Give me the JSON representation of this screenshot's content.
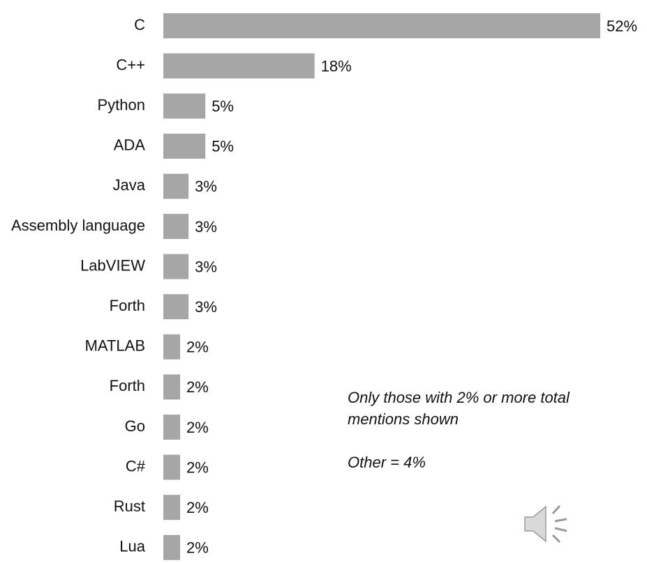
{
  "chart_data": {
    "type": "bar",
    "orientation": "horizontal",
    "categories": [
      "C",
      "C++",
      "Python",
      "ADA",
      "Java",
      "Assembly language",
      "LabVIEW",
      "Forth",
      "MATLAB",
      "Forth",
      "Go",
      "C#",
      "Rust",
      "Lua"
    ],
    "values": [
      52,
      18,
      5,
      5,
      3,
      3,
      3,
      3,
      2,
      2,
      2,
      2,
      2,
      2
    ],
    "value_labels": [
      "52%",
      "18%",
      "5%",
      "5%",
      "3%",
      "3%",
      "3%",
      "3%",
      "2%",
      "2%",
      "2%",
      "2%",
      "2%",
      "2%"
    ],
    "color": "#a6a6a6",
    "annotations": [
      "Only those with 2% or more total mentions shown",
      "Other = 4%"
    ]
  }
}
